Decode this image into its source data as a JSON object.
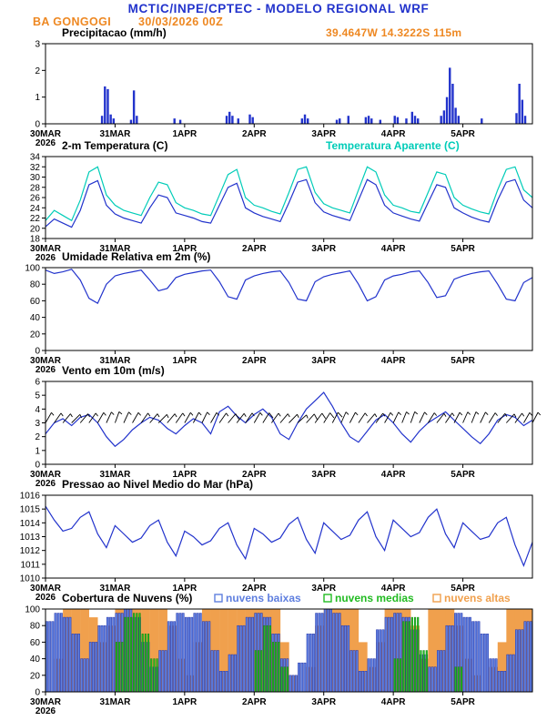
{
  "header": {
    "title": "MCTIC/INPE/CPTEC - MODELO REGIONAL WRF",
    "station": "BA GONGOGI",
    "run": "30/03/2026 00Z",
    "coords": "39.4647W 14.3222S 115m"
  },
  "colors": {
    "header_blue": "#2233cc",
    "accent_orange": "#ee8822",
    "line_blue": "#2233cc",
    "cyan": "#00ccb8",
    "green": "#22bb22",
    "orange_bar": "#f0a04d",
    "black": "#000000"
  },
  "chart_data": {
    "type": "meteogram",
    "x": {
      "unit": "hours since 30/03/2026 00Z",
      "range": [
        0,
        168
      ],
      "step_hours": 3,
      "day_ticks": [
        0,
        24,
        48,
        72,
        96,
        120,
        144
      ],
      "day_labels": [
        "30MAR",
        "31MAR",
        "1APR",
        "2APR",
        "3APR",
        "4APR",
        "5APR"
      ],
      "year_label": "2026"
    },
    "panels": [
      {
        "id": "precip",
        "title": "Precipitacao (mm/h)",
        "type": "bar",
        "ylim": [
          0,
          3
        ],
        "yticks": [
          0,
          1,
          2,
          3
        ],
        "color": "#2233cc",
        "events": [
          [
            19,
            0.3
          ],
          [
            20,
            1.4
          ],
          [
            21,
            1.3
          ],
          [
            22,
            0.35
          ],
          [
            23,
            0.2
          ],
          [
            29,
            0.15
          ],
          [
            30,
            1.25
          ],
          [
            31,
            0.3
          ],
          [
            44,
            0.2
          ],
          [
            46,
            0.15
          ],
          [
            62,
            0.3
          ],
          [
            63,
            0.45
          ],
          [
            64,
            0.3
          ],
          [
            66,
            0.2
          ],
          [
            70,
            0.35
          ],
          [
            71,
            0.25
          ],
          [
            88,
            0.2
          ],
          [
            89,
            0.35
          ],
          [
            90,
            0.2
          ],
          [
            100,
            0.15
          ],
          [
            101,
            0.2
          ],
          [
            104,
            0.3
          ],
          [
            110,
            0.25
          ],
          [
            111,
            0.3
          ],
          [
            112,
            0.2
          ],
          [
            115,
            0.15
          ],
          [
            120,
            0.3
          ],
          [
            121,
            0.25
          ],
          [
            124,
            0.2
          ],
          [
            126,
            0.45
          ],
          [
            127,
            0.3
          ],
          [
            128,
            0.2
          ],
          [
            136,
            0.3
          ],
          [
            137,
            0.5
          ],
          [
            138,
            1.0
          ],
          [
            139,
            2.1
          ],
          [
            140,
            1.5
          ],
          [
            141,
            0.6
          ],
          [
            142,
            0.3
          ],
          [
            150,
            0.2
          ],
          [
            162,
            0.4
          ],
          [
            163,
            1.5
          ],
          [
            164,
            0.9
          ],
          [
            165,
            0.3
          ]
        ]
      },
      {
        "id": "temp",
        "title": "2-m Temperatura (C)",
        "type": "line",
        "ylim": [
          18,
          34
        ],
        "yticks": [
          18,
          20,
          22,
          24,
          26,
          28,
          30,
          32,
          34
        ],
        "legend": {
          "label": "Temperatura Aparente (C)",
          "color": "#00ccb8"
        },
        "series": [
          {
            "name": "2-m Temperatura (C)",
            "color": "#2233cc",
            "values": [
              20.3,
              21.8,
              21.0,
              20.2,
              23.5,
              28.5,
              29.3,
              24.5,
              22.8,
              22.0,
              21.5,
              21.0,
              24.0,
              26.5,
              26.0,
              23.0,
              22.5,
              22.0,
              21.3,
              21.0,
              24.5,
              28.0,
              28.8,
              24.0,
              23.0,
              22.3,
              21.8,
              21.3,
              25.0,
              29.0,
              29.5,
              25.0,
              23.2,
              22.5,
              22.0,
              21.5,
              25.5,
              29.5,
              28.5,
              24.5,
              23.0,
              22.4,
              21.8,
              21.4,
              25.0,
              28.5,
              28.0,
              24.0,
              23.0,
              22.2,
              21.6,
              21.2,
              25.5,
              29.0,
              29.5,
              25.5,
              24.0
            ]
          },
          {
            "name": "Temperatura Aparente (C)",
            "color": "#00ccb8",
            "values": [
              21.5,
              23.5,
              22.5,
              21.5,
              25.5,
              31.0,
              32.0,
              26.5,
              24.5,
              23.5,
              23.0,
              22.5,
              26.0,
              29.0,
              28.5,
              25.0,
              24.0,
              23.5,
              22.8,
              22.5,
              26.5,
              30.5,
              31.5,
              26.0,
              24.5,
              24.0,
              23.3,
              22.8,
              27.0,
              31.5,
              32.0,
              27.0,
              24.8,
              24.0,
              23.5,
              23.0,
              27.5,
              32.0,
              31.0,
              26.5,
              24.5,
              24.0,
              23.3,
              23.0,
              27.0,
              31.0,
              30.5,
              26.0,
              24.5,
              23.8,
              23.2,
              22.8,
              27.5,
              31.5,
              32.0,
              27.5,
              26.0
            ]
          }
        ]
      },
      {
        "id": "rh",
        "title": "Umidade Relativa em 2m (%)",
        "type": "line",
        "ylim": [
          0,
          100
        ],
        "yticks": [
          0,
          20,
          40,
          60,
          80,
          100
        ],
        "series": [
          {
            "name": "Umidade Relativa em 2m",
            "color": "#2233cc",
            "values": [
              97,
              93,
              95,
              98,
              85,
              63,
              57,
              80,
              90,
              93,
              95,
              97,
              85,
              72,
              75,
              88,
              92,
              94,
              96,
              97,
              83,
              65,
              62,
              85,
              90,
              93,
              95,
              96,
              82,
              62,
              60,
              83,
              89,
              92,
              94,
              96,
              80,
              60,
              65,
              85,
              90,
              92,
              95,
              96,
              82,
              64,
              66,
              86,
              90,
              93,
              95,
              96,
              80,
              62,
              60,
              82,
              88
            ]
          }
        ]
      },
      {
        "id": "wind",
        "title": "Vento em 10m (m/s)",
        "type": "line",
        "ylim": [
          0,
          6
        ],
        "yticks": [
          0,
          1,
          2,
          3,
          4,
          5,
          6
        ],
        "series": [
          {
            "name": "Velocidade do vento em 10m",
            "color": "#2233cc",
            "values": [
              2.2,
              3.0,
              3.3,
              2.8,
              3.4,
              3.6,
              3.0,
              2.0,
              1.3,
              1.8,
              2.5,
              3.0,
              3.4,
              3.2,
              2.6,
              2.2,
              2.8,
              3.3,
              3.0,
              2.2,
              3.8,
              4.2,
              3.5,
              3.0,
              3.6,
              4.0,
              3.4,
              2.2,
              1.8,
              3.0,
              4.0,
              4.6,
              5.2,
              4.2,
              3.0,
              2.0,
              1.6,
              2.4,
              3.2,
              3.6,
              3.0,
              2.2,
              1.6,
              2.4,
              3.0,
              3.4,
              3.8,
              3.2,
              2.6,
              2.0,
              1.5,
              2.2,
              3.2,
              3.6,
              3.4,
              2.8,
              3.2
            ]
          }
        ],
        "barbs": {
          "color": "#000000",
          "baseline": 3,
          "directions_deg": [
            30,
            35,
            40,
            45,
            40,
            35,
            30,
            25,
            20,
            25,
            30,
            35,
            40,
            45,
            40,
            35,
            30,
            28,
            26,
            30,
            35,
            40,
            38,
            34,
            30,
            32,
            36,
            40,
            44,
            48,
            42,
            36,
            32,
            28,
            24,
            28,
            34,
            40,
            36,
            30,
            26,
            22,
            20,
            26,
            32,
            38,
            34,
            28,
            24,
            22,
            26,
            32,
            38,
            42,
            36,
            30,
            28
          ]
        }
      },
      {
        "id": "pres",
        "title": "Pressao ao Nivel Medio do Mar (hPa)",
        "type": "line",
        "ylim": [
          1010,
          1016
        ],
        "yticks": [
          1010,
          1011,
          1012,
          1013,
          1014,
          1015,
          1016
        ],
        "series": [
          {
            "name": "Pressao ao nivel medio do mar",
            "color": "#2233cc",
            "values": [
              1015.2,
              1014.2,
              1013.4,
              1013.6,
              1014.4,
              1014.8,
              1013.2,
              1012.2,
              1013.8,
              1013.2,
              1012.6,
              1012.9,
              1013.8,
              1014.2,
              1012.6,
              1011.6,
              1013.4,
              1013.0,
              1012.4,
              1012.7,
              1013.6,
              1014.0,
              1012.4,
              1011.4,
              1013.6,
              1013.2,
              1012.6,
              1012.9,
              1013.9,
              1014.4,
              1012.8,
              1011.8,
              1014.0,
              1013.4,
              1012.8,
              1013.1,
              1014.2,
              1014.8,
              1013.0,
              1012.0,
              1014.2,
              1013.6,
              1013.0,
              1013.3,
              1014.4,
              1015.0,
              1013.2,
              1012.2,
              1014.0,
              1013.4,
              1012.8,
              1013.0,
              1014.0,
              1014.4,
              1012.4,
              1010.9,
              1012.6
            ]
          }
        ]
      },
      {
        "id": "clouds",
        "title": "Cobertura de Nuvens (%)",
        "type": "bar-multi",
        "ylim": [
          0,
          100
        ],
        "yticks": [
          0,
          20,
          40,
          60,
          80,
          100
        ],
        "series": [
          {
            "name": "nuvens baixas",
            "color": "#5f7fdf",
            "outline": "#2233aa",
            "values": [
              85,
              95,
              90,
              70,
              40,
              60,
              80,
              90,
              95,
              100,
              90,
              60,
              30,
              50,
              85,
              95,
              90,
              95,
              85,
              50,
              25,
              45,
              80,
              90,
              95,
              90,
              70,
              40,
              20,
              35,
              70,
              95,
              100,
              95,
              80,
              50,
              25,
              40,
              75,
              90,
              95,
              90,
              75,
              45,
              30,
              50,
              80,
              95,
              90,
              85,
              70,
              40,
              25,
              45,
              75,
              85,
              80
            ]
          },
          {
            "name": "nuvens medias",
            "color": "#22bb22",
            "outline": "#118811",
            "values": [
              0,
              0,
              0,
              0,
              0,
              0,
              0,
              0,
              60,
              90,
              95,
              70,
              40,
              0,
              0,
              0,
              0,
              0,
              0,
              0,
              0,
              0,
              0,
              0,
              50,
              80,
              60,
              30,
              0,
              0,
              0,
              0,
              0,
              0,
              0,
              0,
              0,
              0,
              0,
              0,
              40,
              85,
              90,
              50,
              0,
              0,
              0,
              30,
              0,
              0,
              0,
              0,
              0,
              0,
              0,
              0,
              0
            ]
          },
          {
            "name": "nuvens altas",
            "color": "#f0a04d",
            "outline": "#dd7711",
            "values": [
              0,
              40,
              100,
              100,
              100,
              90,
              60,
              80,
              100,
              100,
              100,
              100,
              100,
              100,
              80,
              40,
              20,
              60,
              100,
              100,
              100,
              100,
              100,
              100,
              100,
              100,
              100,
              60,
              20,
              0,
              30,
              80,
              100,
              100,
              100,
              100,
              60,
              30,
              60,
              100,
              100,
              100,
              80,
              40,
              100,
              100,
              100,
              80,
              40,
              20,
              0,
              30,
              60,
              100,
              100,
              100,
              100
            ]
          }
        ]
      }
    ]
  }
}
